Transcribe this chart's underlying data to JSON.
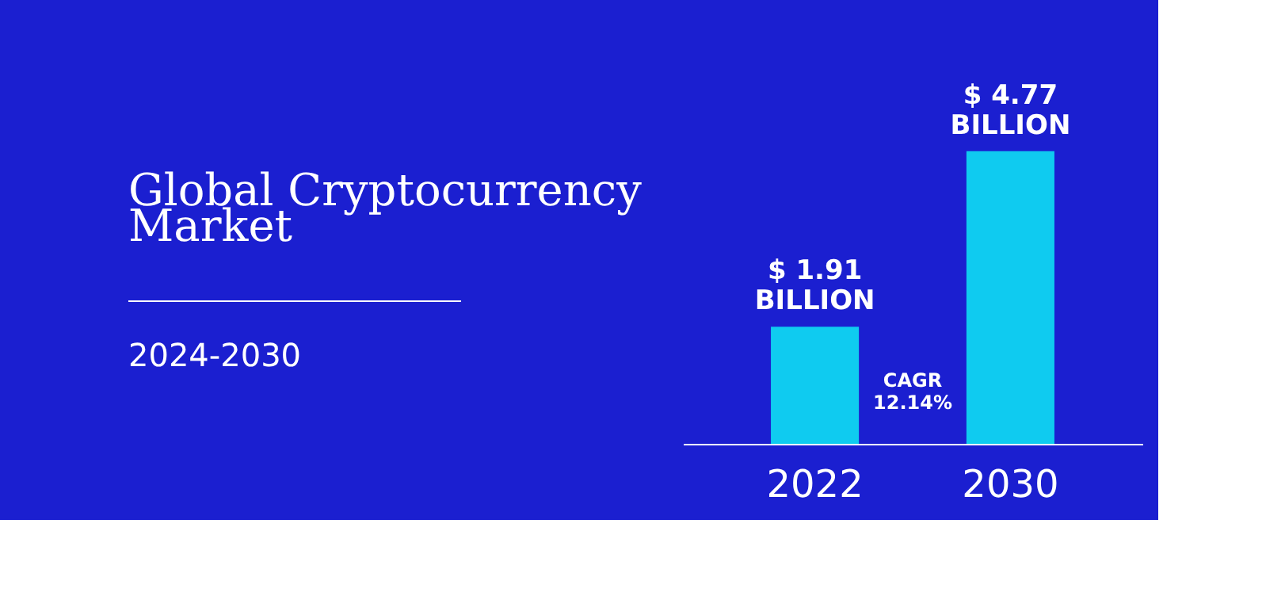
{
  "chart_data": {
    "type": "bar",
    "title": "Global Cryptocurrency Market",
    "subtitle": "2024-2030",
    "categories": [
      "2022",
      "2030"
    ],
    "series": [
      {
        "color": "#0fcbf0",
        "values": [
          1.91,
          4.77
        ],
        "value_labels": [
          "$ 1.91\nBILLION",
          "$ 4.77\nBILLION"
        ]
      }
    ],
    "annotations": [
      "CAGR\n12.14%"
    ],
    "grid": false,
    "tick_labels": "x"
  }
}
